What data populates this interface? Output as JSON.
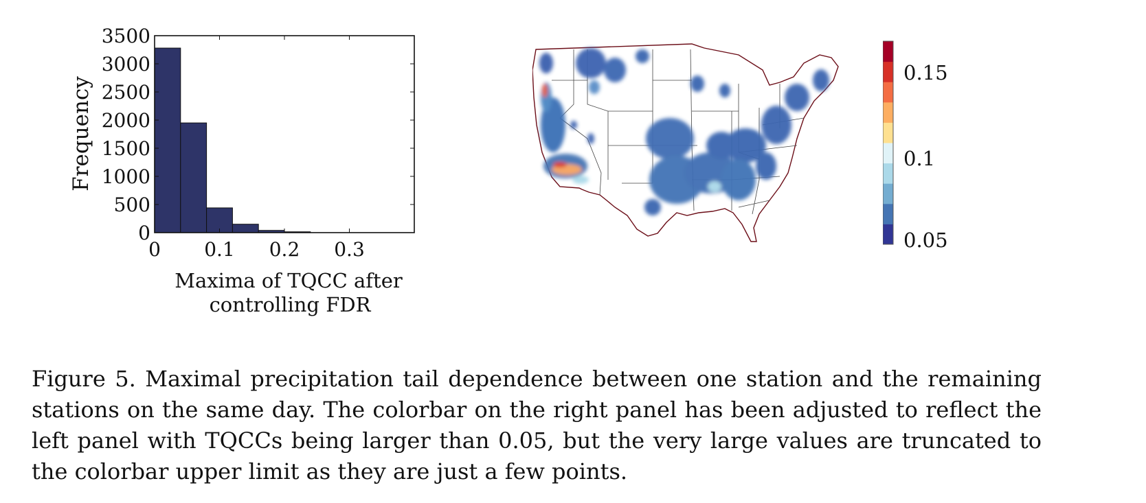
{
  "chart_data": [
    {
      "type": "bar",
      "xlabel": "Maxima of TQCC after controlling FDR",
      "xlabel_lines": [
        "Maxima of TQCC after",
        "controlling FDR"
      ],
      "ylabel": "Frequency",
      "xlim": [
        0,
        0.4
      ],
      "ylim": [
        0,
        3500
      ],
      "xticks": [
        "0",
        "0.1",
        "0.2",
        "0.3"
      ],
      "xtick_values": [
        0,
        0.1,
        0.2,
        0.3
      ],
      "yticks": [
        "0",
        "500",
        "1000",
        "1500",
        "2000",
        "2500",
        "3000",
        "3500"
      ],
      "ytick_values": [
        0,
        500,
        1000,
        1500,
        2000,
        2500,
        3000,
        3500
      ],
      "bins": [
        [
          0.0,
          0.04
        ],
        [
          0.04,
          0.08
        ],
        [
          0.08,
          0.12
        ],
        [
          0.12,
          0.16
        ],
        [
          0.16,
          0.2
        ],
        [
          0.2,
          0.24
        ]
      ],
      "values": [
        3280,
        1950,
        440,
        150,
        40,
        15
      ],
      "bar_color": "#2e3468"
    },
    {
      "type": "heatmap",
      "subject": "map of contiguous United States",
      "colorbar": {
        "ticks": [
          "0.15",
          "0.1",
          "0.05"
        ],
        "tick_values": [
          0.15,
          0.1,
          0.05
        ],
        "range": [
          0.05,
          0.17
        ],
        "colors": [
          "#313695",
          "#4575b4",
          "#74add1",
          "#abd9e9",
          "#e0f3f8",
          "#fee090",
          "#fdae61",
          "#f46d43",
          "#d73027",
          "#a50026"
        ]
      }
    }
  ],
  "caption": {
    "label": "Figure 5.",
    "text": "Maximal precipitation tail dependence between one station and the remaining stations on the same day. The colorbar on the right panel has been adjusted to reflect the left panel with TQCCs being larger than 0.05, but the very large values are truncated to the colorbar upper limit as they are just a few points."
  }
}
